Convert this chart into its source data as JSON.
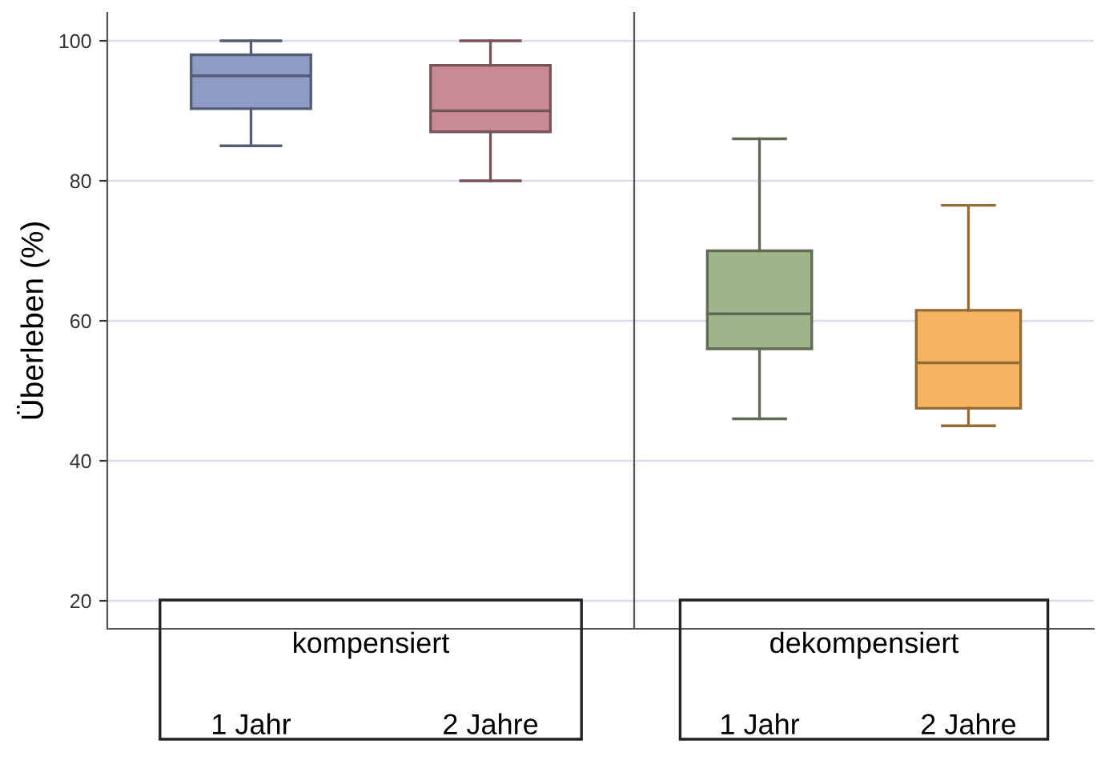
{
  "chart_data": [
    {
      "type": "box",
      "xlabel": "kompensiert",
      "ylabel": "Überleben (%)",
      "categories": [
        "1 Jahr",
        "2 Jahre"
      ],
      "colors": [
        "#8e9bc4",
        "#c98a96"
      ],
      "boxes": [
        {
          "low": 85,
          "q1": 90.3,
          "median": 95,
          "q3": 98,
          "high": 100
        },
        {
          "low": 80,
          "q1": 87,
          "median": 90,
          "q3": 96.5,
          "high": 100
        }
      ],
      "ylim": [
        16,
        104
      ],
      "yticks": [
        20,
        40,
        60,
        80,
        100
      ],
      "grid": "y"
    },
    {
      "type": "box",
      "xlabel": "dekompensiert",
      "categories": [
        "1 Jahr",
        "2 Jahre"
      ],
      "colors": [
        "#9fb48a",
        "#f3b35f"
      ],
      "boxes": [
        {
          "low": 46,
          "q1": 56,
          "median": 61,
          "q3": 70,
          "high": 86
        },
        {
          "low": 45,
          "q1": 47.5,
          "median": 54,
          "q3": 61.5,
          "high": 76.5
        }
      ],
      "ylim": [
        16,
        104
      ],
      "yticks": [
        20,
        40,
        60,
        80,
        100
      ],
      "grid": "y",
      "tick_labels": "x"
    }
  ]
}
